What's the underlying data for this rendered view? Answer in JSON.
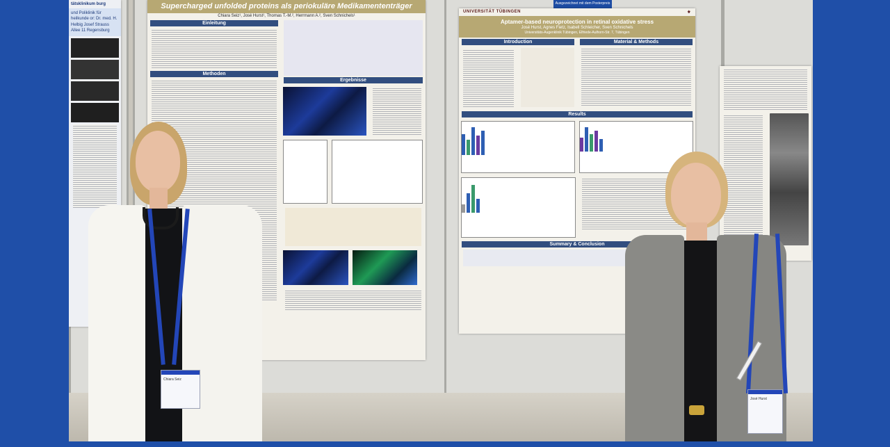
{
  "poster_left": {
    "title": "Supercharged unfolded proteins als periokuläre Medikamententräger",
    "authors": "Chiara Seiz¹, José Hurst¹, Thomas T.-M.², Herrmann A.², Sven Schnichels¹",
    "sections": [
      "Einleitung",
      "Methoden",
      "Ergebnisse"
    ]
  },
  "poster_right": {
    "institution": "UNIVERSITÄT TÜBINGEN",
    "title": "Aptamer-based neuroprotection in retinal oxidative stress",
    "authors": "José Hurst, Agnes Fietz, Isabell Schleicher, Sven Schnichels",
    "affiliation": "Universitäts-Augenklinik Tübingen, Elfriede-Aulhorn-Str. 7, Tübingen",
    "sections": [
      "Introduction",
      "Material & Methods",
      "Results",
      "Summary & Conclusion"
    ],
    "award_banner": "Ausgezeichnet mit dem Posterpreis der DOG"
  },
  "poster_far_left": {
    "text_top": "tätsklinikum burg",
    "text_mid": "und Poliklinik für heilkunde or: Dr. med. H. Helbig Josef Strauss Allee 11 Regensburg"
  },
  "badges": {
    "left_name": "Chiara Seiz",
    "right_name": "José Hurst"
  },
  "colors": {
    "frame": "#1f4fa8",
    "poster_band": "#b7a873",
    "section_head": "#324e7f",
    "lanyard": "#2346b8"
  }
}
